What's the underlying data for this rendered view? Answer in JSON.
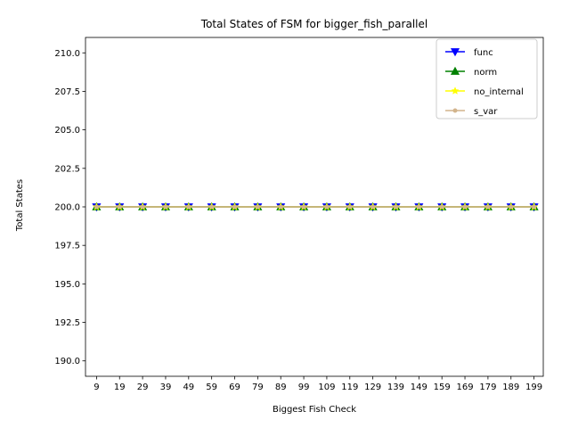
{
  "chart_data": {
    "type": "line",
    "title": "Total States of FSM for bigger_fish_parallel",
    "xlabel": "Biggest Fish Check",
    "ylabel": "Total States",
    "categories": [
      "9",
      "19",
      "29",
      "39",
      "49",
      "59",
      "69",
      "79",
      "89",
      "99",
      "109",
      "119",
      "129",
      "139",
      "149",
      "159",
      "169",
      "179",
      "189",
      "199"
    ],
    "ylim": [
      189,
      211
    ],
    "yticks": [
      190.0,
      192.5,
      195.0,
      197.5,
      200.0,
      202.5,
      205.0,
      207.5,
      210.0
    ],
    "ytick_labels": [
      "190.0",
      "192.5",
      "195.0",
      "197.5",
      "200.0",
      "202.5",
      "205.0",
      "207.5",
      "210.0"
    ],
    "grid": false,
    "legend_position": "top-right",
    "series": [
      {
        "name": "func",
        "color": "#0000ff",
        "marker": "triangle-down",
        "values": [
          200,
          200,
          200,
          200,
          200,
          200,
          200,
          200,
          200,
          200,
          200,
          200,
          200,
          200,
          200,
          200,
          200,
          200,
          200,
          200
        ]
      },
      {
        "name": "norm",
        "color": "#008000",
        "marker": "triangle-up",
        "values": [
          200,
          200,
          200,
          200,
          200,
          200,
          200,
          200,
          200,
          200,
          200,
          200,
          200,
          200,
          200,
          200,
          200,
          200,
          200,
          200
        ]
      },
      {
        "name": "no_internal",
        "color": "#ffff00",
        "marker": "star",
        "values": [
          200,
          200,
          200,
          200,
          200,
          200,
          200,
          200,
          200,
          200,
          200,
          200,
          200,
          200,
          200,
          200,
          200,
          200,
          200,
          200
        ]
      },
      {
        "name": "s_var",
        "color": "#d2b48c",
        "marker": "dot",
        "values": [
          200,
          200,
          200,
          200,
          200,
          200,
          200,
          200,
          200,
          200,
          200,
          200,
          200,
          200,
          200,
          200,
          200,
          200,
          200,
          200
        ]
      }
    ]
  }
}
